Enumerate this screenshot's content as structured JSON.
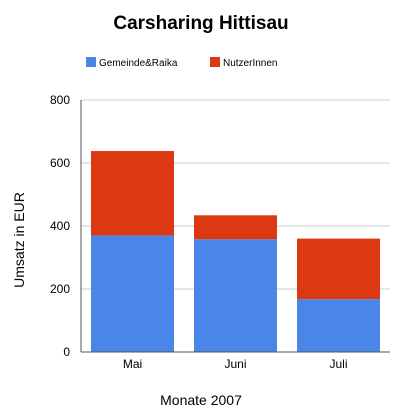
{
  "chart_data": {
    "type": "bar",
    "stacked": true,
    "title": "Carsharing Hittisau",
    "xlabel": "Monate 2007",
    "ylabel": "Umsatz in EUR",
    "categories": [
      "Mai",
      "Juni",
      "Juli"
    ],
    "series": [
      {
        "name": "Gemeinde&Raika",
        "color": "#4a86e8",
        "values": [
          370,
          358,
          168
        ]
      },
      {
        "name": "NutzerInnen",
        "color": "#dc3912",
        "values": [
          268,
          76,
          192
        ]
      }
    ],
    "ylim": [
      0,
      800
    ],
    "yticks": [
      0,
      200,
      400,
      600,
      800
    ],
    "grid": true,
    "legend_position": "top-left"
  }
}
